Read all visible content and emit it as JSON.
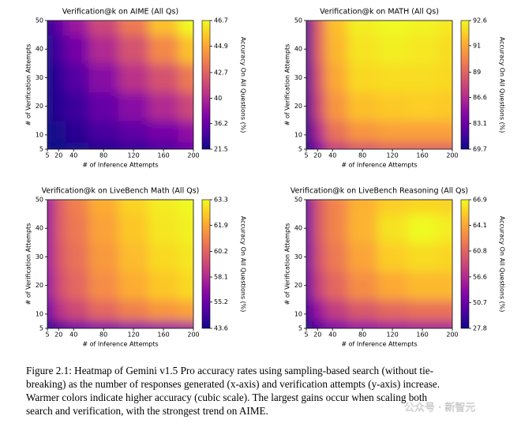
{
  "chart_data": [
    {
      "type": "heatmap",
      "title": "Verification@k on AIME (All Qs)",
      "x_label": "# of Inference Attempts",
      "y_label": "# of Verification Attempts",
      "colorbar_label": "Accuracy On All Questions (%)",
      "x": [
        5,
        20,
        40,
        80,
        120,
        160,
        200
      ],
      "y": [
        5,
        10,
        20,
        30,
        40,
        50
      ],
      "z": [
        [
          21.5,
          26,
          28,
          30,
          32,
          34,
          36
        ],
        [
          25,
          29,
          31,
          34,
          35.5,
          37,
          38.5
        ],
        [
          27,
          31,
          33,
          36,
          38,
          40,
          41.5
        ],
        [
          28,
          32,
          35,
          38,
          40.5,
          42,
          43.5
        ],
        [
          29,
          34,
          37,
          40,
          42,
          44,
          45.5
        ],
        [
          30,
          36,
          39,
          41.5,
          43.5,
          45.5,
          46.7
        ]
      ],
      "xlim": [
        5,
        200
      ],
      "xticks": [
        5,
        20,
        40,
        80,
        120,
        160,
        200
      ],
      "ylim": [
        5,
        50
      ],
      "yticks": [
        5,
        10,
        20,
        30,
        40,
        50
      ],
      "color_scale": "cubic",
      "clim": [
        21.5,
        46.7
      ],
      "cticks": [
        21.5,
        36.2,
        40.0,
        42.7,
        44.9,
        46.7
      ]
    },
    {
      "type": "heatmap",
      "title": "Verification@k on MATH (All Qs)",
      "x_label": "# of Inference Attempts",
      "y_label": "# of Verification Attempts",
      "colorbar_label": "Accuracy On All Questions (%)",
      "x": [
        5,
        20,
        40,
        80,
        120,
        160,
        200
      ],
      "y": [
        5,
        10,
        20,
        30,
        40,
        50
      ],
      "z": [
        [
          69.7,
          84,
          87.5,
          88.5,
          89,
          89,
          89
        ],
        [
          77,
          86.5,
          89.5,
          90.5,
          90.8,
          90.8,
          90.8
        ],
        [
          79,
          88,
          90.5,
          91.5,
          91.7,
          91.8,
          91.7
        ],
        [
          79.5,
          88.5,
          91,
          92,
          92.1,
          92.1,
          92
        ],
        [
          80,
          89,
          91.3,
          92.2,
          92.4,
          92.3,
          92.1
        ],
        [
          80,
          89,
          91.5,
          92.4,
          92.6,
          92.5,
          92.3
        ]
      ],
      "xlim": [
        5,
        200
      ],
      "xticks": [
        5,
        20,
        40,
        80,
        120,
        160,
        200
      ],
      "ylim": [
        5,
        50
      ],
      "yticks": [
        5,
        10,
        20,
        30,
        40,
        50
      ],
      "color_scale": "cubic",
      "clim": [
        69.7,
        92.6
      ],
      "cticks": [
        69.7,
        83.1,
        86.6,
        89.0,
        91.0,
        92.6
      ]
    },
    {
      "type": "heatmap",
      "title": "Verification@k on LiveBench Math (All Qs)",
      "x_label": "# of Inference Attempts",
      "y_label": "# of Verification Attempts",
      "colorbar_label": "Accuracy On All Questions (%)",
      "x": [
        5,
        20,
        40,
        80,
        120,
        160,
        200
      ],
      "y": [
        5,
        10,
        20,
        30,
        40,
        50
      ],
      "z": [
        [
          43.6,
          53,
          55,
          56,
          56.5,
          57,
          57.3
        ],
        [
          55,
          58.5,
          59.3,
          60.3,
          61,
          61.5,
          61.8
        ],
        [
          56.5,
          59.5,
          60.3,
          61.3,
          62,
          62.5,
          62.8
        ],
        [
          57,
          59.8,
          60.6,
          61.6,
          62.3,
          62.8,
          63
        ],
        [
          57,
          60,
          60.8,
          61.8,
          62.5,
          63,
          63.2
        ],
        [
          57,
          60,
          61,
          62,
          62.7,
          63.1,
          63.3
        ]
      ],
      "xlim": [
        5,
        200
      ],
      "xticks": [
        5,
        20,
        40,
        80,
        120,
        160,
        200
      ],
      "ylim": [
        5,
        50
      ],
      "yticks": [
        5,
        10,
        20,
        30,
        40,
        50
      ],
      "color_scale": "cubic",
      "clim": [
        43.6,
        63.3
      ],
      "cticks": [
        43.6,
        55.2,
        58.1,
        60.2,
        61.9,
        63.3
      ]
    },
    {
      "type": "heatmap",
      "title": "Verification@k on LiveBench Reasoning (All Qs)",
      "x_label": "# of Inference Attempts",
      "y_label": "# of Verification Attempts",
      "colorbar_label": "Accuracy On All Questions (%)",
      "x": [
        5,
        20,
        40,
        80,
        120,
        160,
        200
      ],
      "y": [
        5,
        10,
        20,
        30,
        40,
        50
      ],
      "z": [
        [
          27.8,
          48,
          52,
          54,
          55,
          55.5,
          55.5
        ],
        [
          46,
          55,
          58,
          60,
          61,
          61.5,
          61.5
        ],
        [
          49,
          58.5,
          61,
          63,
          64.2,
          64.8,
          64.8
        ],
        [
          49.5,
          59.5,
          62,
          64,
          65.5,
          66,
          65.8
        ],
        [
          50,
          60,
          62.5,
          64.6,
          66.2,
          66.9,
          66.5
        ],
        [
          50,
          60,
          62.5,
          64.5,
          65.5,
          65.8,
          65.7
        ]
      ],
      "xlim": [
        5,
        200
      ],
      "xticks": [
        5,
        20,
        40,
        80,
        120,
        160,
        200
      ],
      "ylim": [
        5,
        50
      ],
      "yticks": [
        5,
        10,
        20,
        30,
        40,
        50
      ],
      "color_scale": "cubic",
      "clim": [
        27.8,
        66.9
      ],
      "cticks": [
        27.8,
        50.7,
        56.6,
        60.8,
        64.1,
        66.9
      ]
    }
  ],
  "caption": {
    "lines": [
      "Figure 2.1: Heatmap of Gemini v1.5 Pro accuracy rates using sampling-based search (without tie-",
      "breaking) as the number of responses generated (x-axis) and verification attempts (y-axis) increase.",
      "Warmer colors indicate higher accuracy (cubic scale).  The largest gains occur when scaling both",
      "search and verification, with the strongest trend on AIME."
    ]
  },
  "watermark": "公众号 · 新智元"
}
